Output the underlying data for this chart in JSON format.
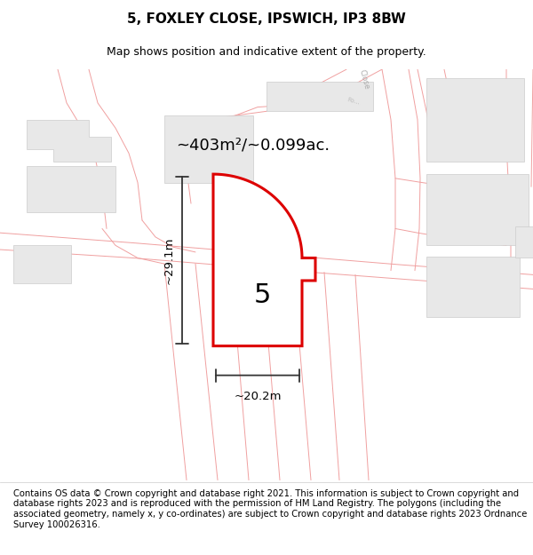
{
  "title_line1": "5, FOXLEY CLOSE, IPSWICH, IP3 8BW",
  "title_line2": "Map shows position and indicative extent of the property.",
  "footer_text": "Contains OS data © Crown copyright and database right 2021. This information is subject to Crown copyright and database rights 2023 and is reproduced with the permission of HM Land Registry. The polygons (including the associated geometry, namely x, y co-ordinates) are subject to Crown copyright and database rights 2023 Ordnance Survey 100026316.",
  "area_label": "~403m²/~0.099ac.",
  "dim_vertical": "~29.1m",
  "dim_horizontal": "~20.2m",
  "plot_number": "5",
  "map_bg": "#f8f8f8",
  "polygon_color": "#dd0000",
  "polygon_fill": "#ffffff",
  "building_fill": "#e8e8e8",
  "building_edge": "#cccccc",
  "road_color": "#f0a0a0",
  "road_outline": "#e8c8c8",
  "title_fontsize": 11,
  "subtitle_fontsize": 9,
  "footer_fontsize": 7.2,
  "figsize": [
    6.0,
    6.25
  ],
  "dpi": 100
}
